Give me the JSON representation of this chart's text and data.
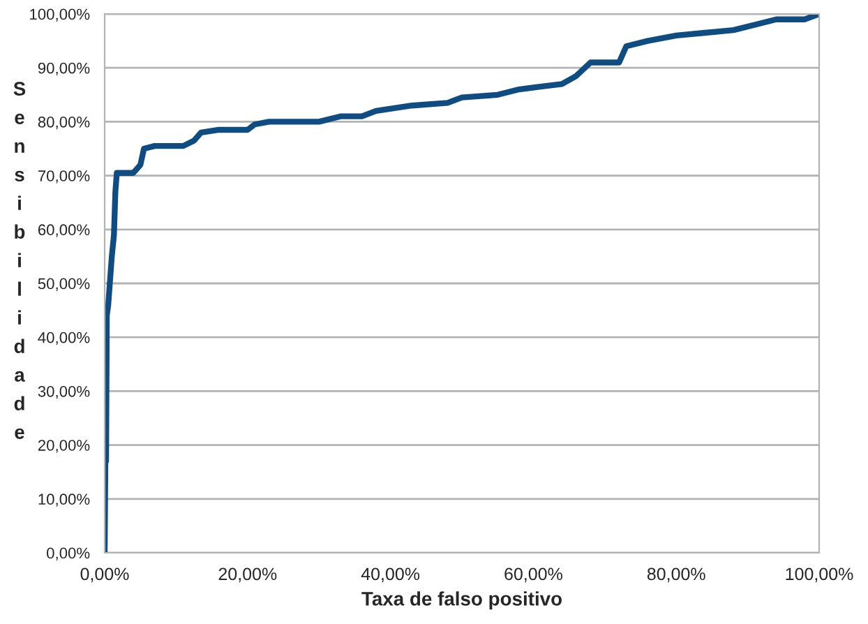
{
  "chart_data": {
    "type": "line",
    "xlabel": "Taxa de falso positivo",
    "ylabel": "Sensibilidade",
    "series": [
      {
        "color": "#0f4c81",
        "x": [
          0,
          0.1,
          0.2,
          0.3,
          0.5,
          1.0,
          1.3,
          1.5,
          1.7,
          1.8,
          4,
          5,
          5.5,
          7,
          11,
          12.5,
          13.5,
          16,
          20,
          21,
          23,
          30,
          33,
          36,
          38,
          43,
          48,
          50,
          55,
          58,
          61,
          64,
          66,
          68,
          72,
          73,
          76,
          80,
          84,
          88,
          91,
          94,
          98,
          100
        ],
        "values": [
          0,
          17,
          17,
          44,
          46,
          55,
          59,
          67,
          70.5,
          70.5,
          70.5,
          72,
          75,
          75.5,
          75.5,
          76.5,
          78,
          78.5,
          78.5,
          79.5,
          80,
          80,
          81,
          81,
          82,
          83,
          83.5,
          84.5,
          85,
          86,
          86.5,
          87,
          88.5,
          91,
          91,
          94,
          95,
          96,
          96.5,
          97,
          98,
          99,
          99,
          100
        ]
      }
    ],
    "xlim": [
      0,
      100
    ],
    "ylim": [
      0,
      100
    ],
    "xticks": [
      {
        "value": 0,
        "label": "0,00%"
      },
      {
        "value": 20,
        "label": "20,00%"
      },
      {
        "value": 40,
        "label": "40,00%"
      },
      {
        "value": 60,
        "label": "60,00%"
      },
      {
        "value": 80,
        "label": "80,00%"
      },
      {
        "value": 100,
        "label": "100,00%"
      }
    ],
    "yticks": [
      {
        "value": 0,
        "label": "0,00%"
      },
      {
        "value": 10,
        "label": "10,00%"
      },
      {
        "value": 20,
        "label": "20,00%"
      },
      {
        "value": 30,
        "label": "30,00%"
      },
      {
        "value": 40,
        "label": "40,00%"
      },
      {
        "value": 50,
        "label": "50,00%"
      },
      {
        "value": 60,
        "label": "60,00%"
      },
      {
        "value": 70,
        "label": "70,00%"
      },
      {
        "value": 80,
        "label": "80,00%"
      },
      {
        "value": 90,
        "label": "90,00%"
      },
      {
        "value": 100,
        "label": "100,00%"
      }
    ],
    "grid": "y",
    "marker": "none",
    "line_style": "solid"
  }
}
